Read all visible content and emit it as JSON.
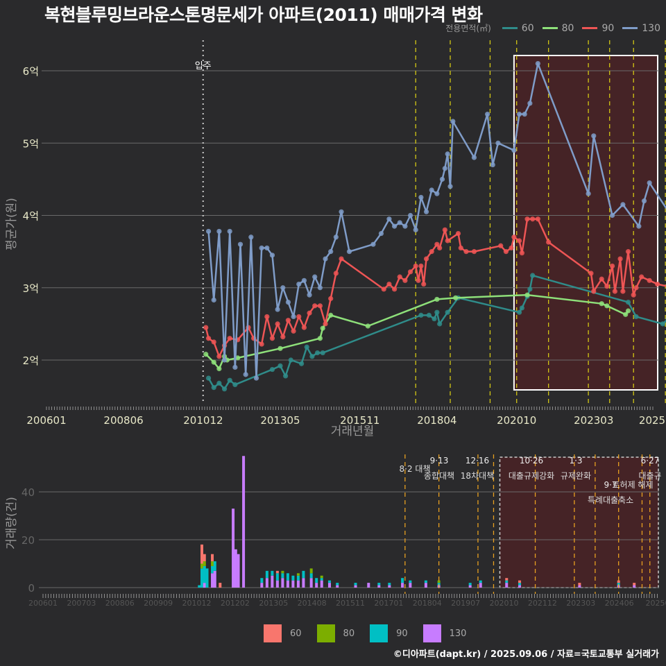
{
  "header": {
    "title": "복현블루밍브라운스톤명문세가 아파트(2011) 매매가격 변화"
  },
  "legend_top": {
    "title": "전용면적(㎡)",
    "items": [
      {
        "label": "60",
        "color": "#2f8c8a"
      },
      {
        "label": "80",
        "color": "#8ee07a"
      },
      {
        "label": "90",
        "color": "#ee5555"
      },
      {
        "label": "130",
        "color": "#7f9cc8"
      }
    ]
  },
  "legend_bottom": {
    "items": [
      {
        "label": "60",
        "color": "#f8766d"
      },
      {
        "label": "80",
        "color": "#7cae00"
      },
      {
        "label": "90",
        "color": "#00bfc4"
      },
      {
        "label": "130",
        "color": "#c77cff"
      }
    ]
  },
  "footer": {
    "credit": "©디아파트(dapt.kr) / 2025.09.06 / 자료=국토교통부 실거래가"
  },
  "chart_data": [
    {
      "type": "line",
      "title": "복현블루밍브라운스톤명문세가 아파트(2011) 매매가격 변화",
      "xlabel": "거래년월",
      "ylabel": "평균가(원)",
      "x_ticks": [
        "200601",
        "200806",
        "201012",
        "201305",
        "201511",
        "201804",
        "202010",
        "202303",
        "2025"
      ],
      "y_ticks": [
        "2억",
        "3억",
        "4억",
        "5억",
        "6억"
      ],
      "ylim": [
        1.6,
        6.2
      ],
      "y_unit": "억",
      "grid": true,
      "legend_position": "top-right",
      "annotations": [
        {
          "label": "입주",
          "x": "201101",
          "style": "dotted-white"
        }
      ],
      "highlight_box": {
        "x_start": "202009",
        "x_end": "202509"
      },
      "policy_lines_x": [
        "201708",
        "201809",
        "201912",
        "202010",
        "202110",
        "202301",
        "202309",
        "202406",
        "202506"
      ],
      "series": [
        {
          "name": "60",
          "points": [
            [
              "201102",
              1.75
            ],
            [
              "201104",
              1.62
            ],
            [
              "201106",
              1.68
            ],
            [
              "201108",
              1.6
            ],
            [
              "201110",
              1.72
            ],
            [
              "201112",
              1.66
            ],
            [
              "201302",
              1.87
            ],
            [
              "201305",
              1.92
            ],
            [
              "201307",
              1.78
            ],
            [
              "201309",
              2.0
            ],
            [
              "201401",
              1.95
            ],
            [
              "201403",
              2.18
            ],
            [
              "201405",
              2.05
            ],
            [
              "201407",
              2.1
            ],
            [
              "201409",
              2.1
            ],
            [
              "201710",
              2.62
            ],
            [
              "201801",
              2.62
            ],
            [
              "201803",
              2.57
            ],
            [
              "201804",
              2.66
            ],
            [
              "201805",
              2.5
            ],
            [
              "201808",
              2.66
            ],
            [
              "201812",
              2.86
            ],
            [
              "202011",
              2.66
            ],
            [
              "202012",
              2.72
            ],
            [
              "202102",
              2.88
            ],
            [
              "202103",
              2.98
            ],
            [
              "202104",
              3.17
            ],
            [
              "202404",
              2.8
            ],
            [
              "202407",
              2.6
            ],
            [
              "202505",
              2.5
            ],
            [
              "202507",
              2.57
            ]
          ]
        },
        {
          "name": "80",
          "points": [
            [
              "201101",
              2.08
            ],
            [
              "201104",
              1.97
            ],
            [
              "201106",
              1.88
            ],
            [
              "201108",
              2.05
            ],
            [
              "201109",
              2.0
            ],
            [
              "201201",
              2.03
            ],
            [
              "201305",
              2.16
            ],
            [
              "201408",
              2.3
            ],
            [
              "201409",
              2.44
            ],
            [
              "201412",
              2.62
            ],
            [
              "201602",
              2.47
            ],
            [
              "201804",
              2.84
            ],
            [
              "201811",
              2.86
            ],
            [
              "202102",
              2.9
            ],
            [
              "202306",
              2.78
            ],
            [
              "202308",
              2.75
            ],
            [
              "202403",
              2.63
            ],
            [
              "202404",
              2.68
            ]
          ]
        },
        {
          "name": "90",
          "points": [
            [
              "201101",
              2.45
            ],
            [
              "201102",
              2.3
            ],
            [
              "201104",
              2.25
            ],
            [
              "201106",
              2.05
            ],
            [
              "201108",
              2.2
            ],
            [
              "201110",
              2.3
            ],
            [
              "201201",
              2.28
            ],
            [
              "201205",
              2.45
            ],
            [
              "201207",
              2.3
            ],
            [
              "201210",
              2.22
            ],
            [
              "201212",
              2.6
            ],
            [
              "201302",
              2.3
            ],
            [
              "201304",
              2.5
            ],
            [
              "201306",
              2.32
            ],
            [
              "201308",
              2.55
            ],
            [
              "201310",
              2.4
            ],
            [
              "201312",
              2.6
            ],
            [
              "201402",
              2.45
            ],
            [
              "201404",
              2.65
            ],
            [
              "201406",
              2.75
            ],
            [
              "201408",
              2.75
            ],
            [
              "201410",
              2.5
            ],
            [
              "201412",
              2.85
            ],
            [
              "201502",
              3.2
            ],
            [
              "201504",
              3.4
            ],
            [
              "201608",
              2.98
            ],
            [
              "201610",
              3.05
            ],
            [
              "201612",
              2.98
            ],
            [
              "201702",
              3.15
            ],
            [
              "201704",
              3.1
            ],
            [
              "201706",
              3.22
            ],
            [
              "201708",
              3.3
            ],
            [
              "201709",
              3.1
            ],
            [
              "201710",
              3.3
            ],
            [
              "201711",
              3.05
            ],
            [
              "201712",
              3.4
            ],
            [
              "201802",
              3.5
            ],
            [
              "201804",
              3.6
            ],
            [
              "201805",
              3.55
            ],
            [
              "201807",
              3.8
            ],
            [
              "201808",
              3.65
            ],
            [
              "201812",
              3.75
            ],
            [
              "201901",
              3.55
            ],
            [
              "201903",
              3.5
            ],
            [
              "201906",
              3.5
            ],
            [
              "202004",
              3.58
            ],
            [
              "202006",
              3.5
            ],
            [
              "202008",
              3.55
            ],
            [
              "202009",
              3.7
            ],
            [
              "202011",
              3.65
            ],
            [
              "202012",
              3.48
            ],
            [
              "202102",
              3.95
            ],
            [
              "202104",
              3.95
            ],
            [
              "202106",
              3.95
            ],
            [
              "202110",
              3.63
            ],
            [
              "202302",
              3.2
            ],
            [
              "202303",
              2.95
            ],
            [
              "202306",
              3.12
            ],
            [
              "202308",
              3.02
            ],
            [
              "202310",
              3.3
            ],
            [
              "202311",
              2.95
            ],
            [
              "202401",
              3.4
            ],
            [
              "202402",
              2.95
            ],
            [
              "202404",
              3.5
            ],
            [
              "202406",
              2.9
            ],
            [
              "202407",
              3.0
            ],
            [
              "202409",
              3.15
            ],
            [
              "202412",
              3.1
            ],
            [
              "202503",
              3.05
            ],
            [
              "202509",
              3.0
            ]
          ]
        },
        {
          "name": "130",
          "points": [
            [
              "201102",
              3.78
            ],
            [
              "201104",
              2.83
            ],
            [
              "201106",
              3.78
            ],
            [
              "201108",
              2.0
            ],
            [
              "201110",
              3.78
            ],
            [
              "201112",
              1.9
            ],
            [
              "201202",
              3.6
            ],
            [
              "201204",
              1.8
            ],
            [
              "201206",
              3.7
            ],
            [
              "201208",
              1.75
            ],
            [
              "201210",
              3.55
            ],
            [
              "201212",
              3.55
            ],
            [
              "201302",
              3.45
            ],
            [
              "201304",
              2.7
            ],
            [
              "201306",
              3.0
            ],
            [
              "201308",
              2.8
            ],
            [
              "201310",
              2.6
            ],
            [
              "201312",
              3.05
            ],
            [
              "201402",
              3.1
            ],
            [
              "201404",
              2.9
            ],
            [
              "201406",
              3.15
            ],
            [
              "201408",
              3.0
            ],
            [
              "201410",
              3.4
            ],
            [
              "201412",
              3.5
            ],
            [
              "201502",
              3.7
            ],
            [
              "201504",
              4.05
            ],
            [
              "201507",
              3.5
            ],
            [
              "201604",
              3.6
            ],
            [
              "201607",
              3.75
            ],
            [
              "201610",
              3.95
            ],
            [
              "201612",
              3.85
            ],
            [
              "201702",
              3.9
            ],
            [
              "201704",
              3.85
            ],
            [
              "201706",
              4.0
            ],
            [
              "201708",
              3.8
            ],
            [
              "201710",
              4.25
            ],
            [
              "201712",
              4.05
            ],
            [
              "201802",
              4.35
            ],
            [
              "201804",
              4.3
            ],
            [
              "201806",
              4.5
            ],
            [
              "201807",
              4.65
            ],
            [
              "201808",
              4.85
            ],
            [
              "201809",
              4.4
            ],
            [
              "201810",
              5.3
            ],
            [
              "201906",
              4.8
            ],
            [
              "201911",
              5.4
            ],
            [
              "202001",
              4.7
            ],
            [
              "202003",
              5.0
            ],
            [
              "202009",
              4.9
            ],
            [
              "202011",
              5.4
            ],
            [
              "202101",
              5.4
            ],
            [
              "202103",
              5.55
            ],
            [
              "202106",
              6.1
            ],
            [
              "202301",
              4.3
            ],
            [
              "202303",
              5.1
            ],
            [
              "202310",
              4.0
            ],
            [
              "202402",
              4.15
            ],
            [
              "202408",
              3.85
            ],
            [
              "202410",
              4.2
            ],
            [
              "202412",
              4.45
            ],
            [
              "202509",
              3.95
            ]
          ]
        }
      ]
    },
    {
      "type": "bar",
      "title": "",
      "xlabel": "",
      "ylabel": "거래량(건)",
      "stacked": true,
      "x_ticks": [
        "200601",
        "200703",
        "200806",
        "200909",
        "201012",
        "201202",
        "201305",
        "201408",
        "201511",
        "201701",
        "201804",
        "201907",
        "202010",
        "202112",
        "202303",
        "202406",
        "20250"
      ],
      "y_ticks": [
        0,
        20,
        40
      ],
      "ylim": [
        0,
        56
      ],
      "legend_position": "bottom",
      "policy_annotations": [
        {
          "date": "8·2 대책",
          "x": "201708"
        },
        {
          "date": "9·13",
          "text": "종합대책",
          "x": "201809"
        },
        {
          "date": "12·16",
          "text": "18차대책",
          "x": "201912"
        },
        {
          "date": "10·26",
          "text": "대출규제강화",
          "x": "202110"
        },
        {
          "date": "1·3",
          "text": "규제완화",
          "x": "202301"
        },
        {
          "date": "9·7",
          "text": "특례대출축소",
          "x": "202309"
        },
        {
          "date": "토허제 해제",
          "x": "202503"
        },
        {
          "date": "6·27",
          "text": "대출규",
          "x": "202506"
        }
      ],
      "series": [
        {
          "name": "60",
          "values_sample": {
            "201102": 8,
            "201103": 3,
            "201106": 3,
            "201109": 2
          }
        },
        {
          "name": "80",
          "values_sample": {
            "201102": 2,
            "201103": 2,
            "201106": 2
          }
        },
        {
          "name": "90",
          "values_sample": {
            "201101": 1,
            "201102": 8,
            "201103": 7,
            "201104": 8,
            "201106": 3,
            "201107": 4
          }
        },
        {
          "name": "130",
          "values_sample": {
            "201103": 2,
            "201106": 6,
            "201107": 7,
            "201202": 33,
            "201203": 16,
            "201204": 14,
            "201206": 55
          }
        }
      ],
      "peak": {
        "x": "201206",
        "value": 55
      }
    }
  ],
  "axes_text": {
    "upper_xlabel": "거래년월",
    "upper_ylabel": "평균가(원)",
    "lower_ylabel": "거래량(건)",
    "upper_xticks": [
      "200601",
      "200806",
      "201012",
      "201305",
      "201511",
      "201804",
      "202010",
      "202303",
      "2025"
    ],
    "upper_yticks": [
      "2억",
      "3억",
      "4억",
      "5억",
      "6억"
    ],
    "lower_xticks": [
      "200601",
      "200703",
      "200806",
      "200909",
      "201012",
      "201202",
      "201305",
      "201408",
      "201511",
      "201701",
      "201804",
      "201907",
      "202010",
      "202112",
      "202303",
      "202406",
      "20250"
    ],
    "lower_yticks": [
      "0",
      "20",
      "40"
    ],
    "move_in_label": "입주"
  },
  "policy_labels": [
    {
      "top": "",
      "bottom": "8·2 대책"
    },
    {
      "top": "9·13",
      "bottom": "종합대책"
    },
    {
      "top": "12·16",
      "bottom": "18차대책"
    },
    {
      "top": "10·26",
      "bottom": "대출규제강화"
    },
    {
      "top": "1·3",
      "bottom": "규제완화"
    },
    {
      "top": "9·7",
      "bottom": "특례대출축소"
    },
    {
      "top": "",
      "bottom": "토허제 해제"
    },
    {
      "top": "6·27",
      "bottom": "대출규"
    }
  ]
}
